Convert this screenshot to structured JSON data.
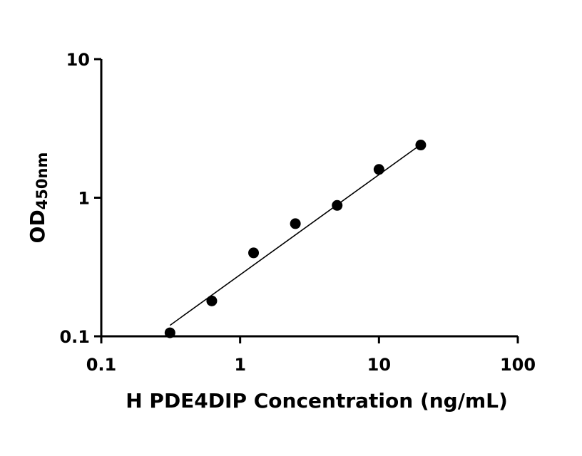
{
  "chart_data": {
    "type": "scatter",
    "x_scale": "log",
    "y_scale": "log",
    "xlim": [
      0.1,
      100
    ],
    "ylim": [
      0.1,
      10
    ],
    "x_ticks": [
      0.1,
      1,
      10,
      100
    ],
    "x_tick_labels": [
      "0.1",
      "1",
      "10",
      "100"
    ],
    "y_ticks": [
      0.1,
      1,
      10
    ],
    "y_tick_labels": [
      "0.1",
      "1",
      "10"
    ],
    "xlabel": "H PDE4DIP Concentration (ng/mL)",
    "ylabel_main": "OD",
    "ylabel_sub": "450nm",
    "grid": false,
    "legend": "none",
    "series": [
      {
        "points": [
          {
            "x": 0.3125,
            "y": 0.106
          },
          {
            "x": 0.625,
            "y": 0.18
          },
          {
            "x": 1.25,
            "y": 0.4
          },
          {
            "x": 2.5,
            "y": 0.65
          },
          {
            "x": 5,
            "y": 0.88
          },
          {
            "x": 10,
            "y": 1.6
          },
          {
            "x": 20,
            "y": 2.4
          }
        ]
      }
    ],
    "fit_line": {
      "x": [
        0.3125,
        20
      ],
      "y": [
        0.12,
        2.42
      ]
    }
  }
}
